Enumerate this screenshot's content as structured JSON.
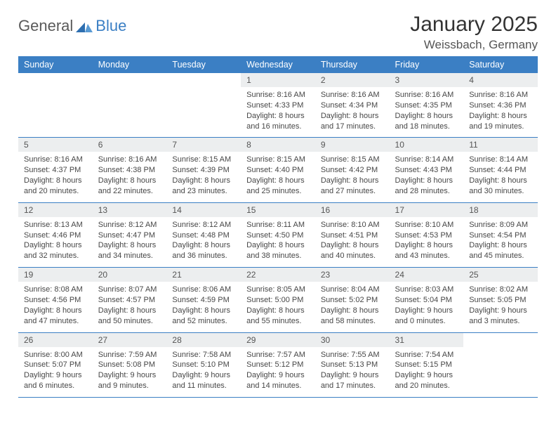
{
  "logo": {
    "general": "General",
    "blue": "Blue"
  },
  "title": "January 2025",
  "location": "Weissbach, Germany",
  "header_bg": "#3b7fc4",
  "header_text": "#ffffff",
  "daynum_bg": "#eceeef",
  "border_color": "#3b7fc4",
  "day_names": [
    "Sunday",
    "Monday",
    "Tuesday",
    "Wednesday",
    "Thursday",
    "Friday",
    "Saturday"
  ],
  "weeks": [
    [
      null,
      null,
      null,
      {
        "n": "1",
        "sr": "8:16 AM",
        "ss": "4:33 PM",
        "dl": "8 hours and 16 minutes."
      },
      {
        "n": "2",
        "sr": "8:16 AM",
        "ss": "4:34 PM",
        "dl": "8 hours and 17 minutes."
      },
      {
        "n": "3",
        "sr": "8:16 AM",
        "ss": "4:35 PM",
        "dl": "8 hours and 18 minutes."
      },
      {
        "n": "4",
        "sr": "8:16 AM",
        "ss": "4:36 PM",
        "dl": "8 hours and 19 minutes."
      }
    ],
    [
      {
        "n": "5",
        "sr": "8:16 AM",
        "ss": "4:37 PM",
        "dl": "8 hours and 20 minutes."
      },
      {
        "n": "6",
        "sr": "8:16 AM",
        "ss": "4:38 PM",
        "dl": "8 hours and 22 minutes."
      },
      {
        "n": "7",
        "sr": "8:15 AM",
        "ss": "4:39 PM",
        "dl": "8 hours and 23 minutes."
      },
      {
        "n": "8",
        "sr": "8:15 AM",
        "ss": "4:40 PM",
        "dl": "8 hours and 25 minutes."
      },
      {
        "n": "9",
        "sr": "8:15 AM",
        "ss": "4:42 PM",
        "dl": "8 hours and 27 minutes."
      },
      {
        "n": "10",
        "sr": "8:14 AM",
        "ss": "4:43 PM",
        "dl": "8 hours and 28 minutes."
      },
      {
        "n": "11",
        "sr": "8:14 AM",
        "ss": "4:44 PM",
        "dl": "8 hours and 30 minutes."
      }
    ],
    [
      {
        "n": "12",
        "sr": "8:13 AM",
        "ss": "4:46 PM",
        "dl": "8 hours and 32 minutes."
      },
      {
        "n": "13",
        "sr": "8:12 AM",
        "ss": "4:47 PM",
        "dl": "8 hours and 34 minutes."
      },
      {
        "n": "14",
        "sr": "8:12 AM",
        "ss": "4:48 PM",
        "dl": "8 hours and 36 minutes."
      },
      {
        "n": "15",
        "sr": "8:11 AM",
        "ss": "4:50 PM",
        "dl": "8 hours and 38 minutes."
      },
      {
        "n": "16",
        "sr": "8:10 AM",
        "ss": "4:51 PM",
        "dl": "8 hours and 40 minutes."
      },
      {
        "n": "17",
        "sr": "8:10 AM",
        "ss": "4:53 PM",
        "dl": "8 hours and 43 minutes."
      },
      {
        "n": "18",
        "sr": "8:09 AM",
        "ss": "4:54 PM",
        "dl": "8 hours and 45 minutes."
      }
    ],
    [
      {
        "n": "19",
        "sr": "8:08 AM",
        "ss": "4:56 PM",
        "dl": "8 hours and 47 minutes."
      },
      {
        "n": "20",
        "sr": "8:07 AM",
        "ss": "4:57 PM",
        "dl": "8 hours and 50 minutes."
      },
      {
        "n": "21",
        "sr": "8:06 AM",
        "ss": "4:59 PM",
        "dl": "8 hours and 52 minutes."
      },
      {
        "n": "22",
        "sr": "8:05 AM",
        "ss": "5:00 PM",
        "dl": "8 hours and 55 minutes."
      },
      {
        "n": "23",
        "sr": "8:04 AM",
        "ss": "5:02 PM",
        "dl": "8 hours and 58 minutes."
      },
      {
        "n": "24",
        "sr": "8:03 AM",
        "ss": "5:04 PM",
        "dl": "9 hours and 0 minutes."
      },
      {
        "n": "25",
        "sr": "8:02 AM",
        "ss": "5:05 PM",
        "dl": "9 hours and 3 minutes."
      }
    ],
    [
      {
        "n": "26",
        "sr": "8:00 AM",
        "ss": "5:07 PM",
        "dl": "9 hours and 6 minutes."
      },
      {
        "n": "27",
        "sr": "7:59 AM",
        "ss": "5:08 PM",
        "dl": "9 hours and 9 minutes."
      },
      {
        "n": "28",
        "sr": "7:58 AM",
        "ss": "5:10 PM",
        "dl": "9 hours and 11 minutes."
      },
      {
        "n": "29",
        "sr": "7:57 AM",
        "ss": "5:12 PM",
        "dl": "9 hours and 14 minutes."
      },
      {
        "n": "30",
        "sr": "7:55 AM",
        "ss": "5:13 PM",
        "dl": "9 hours and 17 minutes."
      },
      {
        "n": "31",
        "sr": "7:54 AM",
        "ss": "5:15 PM",
        "dl": "9 hours and 20 minutes."
      },
      null
    ]
  ],
  "labels": {
    "sunrise": "Sunrise:",
    "sunset": "Sunset:",
    "daylight": "Daylight:"
  }
}
